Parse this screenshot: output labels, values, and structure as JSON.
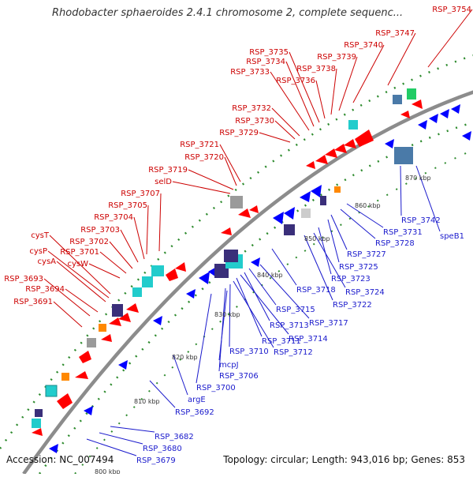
{
  "title": "Rhodobacter sphaeroides 2.4.1 chromosome 2, complete sequenc...",
  "accession": "Accession: NC_007494",
  "summary": "Topology: circular; Length: 943,016 bp; Genes: 853",
  "colors": {
    "forward_gene": "#ff0000",
    "reverse_gene": "#0000ff",
    "forward_label": "#cc0000",
    "reverse_label": "#1a1acc",
    "backbone": "#8c8c8c",
    "tick": "#2e8b2e",
    "teal": "#22cccc",
    "navy": "#3a2f7a",
    "gray": "#9a9a9a",
    "orange": "#ff8800",
    "green": "#22cc66",
    "steel": "#4a7aa8"
  },
  "ticks": [
    "800 kbp",
    "810 kbp",
    "820 kbp",
    "830 kbp",
    "840 kbp",
    "850 kbp",
    "860 kbp",
    "870 kbp"
  ],
  "forward_labels": [
    "RSP_3754",
    "RSP_3747",
    "RSP_3740",
    "RSP_3739",
    "RSP_3738",
    "RSP_3736",
    "RSP_3735",
    "RSP_3734",
    "RSP_3733",
    "RSP_3732",
    "RSP_3730",
    "RSP_3729",
    "RSP_3721",
    "RSP_3720",
    "RSP_3719",
    "selD",
    "RSP_3707",
    "RSP_3705",
    "RSP_3704",
    "RSP_3703",
    "RSP_3702",
    "cysT",
    "RSP_3701",
    "cysP",
    "cysA",
    "cysW",
    "RSP_3693",
    "RSP_3694",
    "RSP_3691"
  ],
  "reverse_labels": [
    "RSP_3742",
    "speB1",
    "RSP_3731",
    "RSP_3728",
    "RSP_3727",
    "RSP_3725",
    "RSP_3723",
    "RSP_3724",
    "RSP_3722",
    "RSP_3718",
    "RSP_3717",
    "RSP_3715",
    "RSP_3713",
    "RSP_3714",
    "RSP_3711",
    "RSP_3712",
    "RSP_3710",
    "RSP_3706",
    "mcpJ",
    "RSP_3700",
    "argE",
    "RSP_3692",
    "RSP_3682",
    "RSP_3680",
    "RSP_3679"
  ]
}
